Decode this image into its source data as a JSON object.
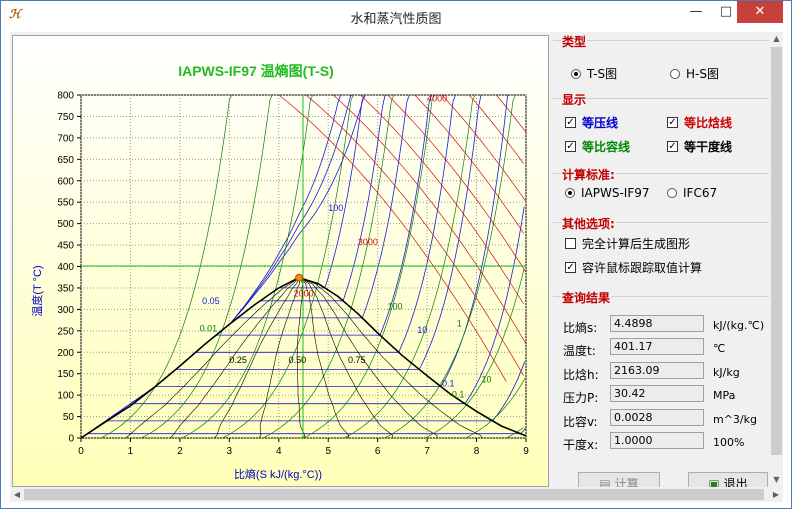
{
  "window": {
    "title": "水和蒸汽性质图",
    "icon_text": "ℋ",
    "minimize": "—",
    "maximize": "□",
    "close": "✕"
  },
  "chart_data": {
    "type": "line",
    "title": "IAPWS-IF97 温熵图(T-S)",
    "xlabel": "比熵(S  kJ/(kg.°C))",
    "ylabel": "温度(T  °C)",
    "xlim": [
      0,
      9
    ],
    "ylim": [
      0,
      800
    ],
    "x_ticks": [
      "0",
      "1",
      "2",
      "3",
      "4",
      "5",
      "6",
      "7",
      "8",
      "9"
    ],
    "y_ticks": [
      "0",
      "50",
      "100",
      "150",
      "200",
      "250",
      "300",
      "350",
      "400",
      "450",
      "500",
      "550",
      "600",
      "650",
      "700",
      "750",
      "800"
    ],
    "grid": true,
    "cursor": {
      "s": 4.4898,
      "t": 401.17
    },
    "critical_point": {
      "s": 4.41,
      "t": 373.9
    },
    "saturation_dome": {
      "x": [
        0,
        0.5,
        1.0,
        1.5,
        2.0,
        2.5,
        3.0,
        3.5,
        4.0,
        4.41,
        4.8,
        5.2,
        5.6,
        6.0,
        6.5,
        7.0,
        7.5,
        8.0,
        8.5,
        9.0
      ],
      "y": [
        0,
        38,
        75,
        120,
        168,
        218,
        265,
        310,
        350,
        374,
        360,
        330,
        290,
        245,
        192,
        145,
        100,
        62,
        28,
        5
      ]
    },
    "isobar_labels": [
      "100",
      "0.05",
      "10",
      "0.1"
    ],
    "enthalpy_labels": [
      "4000",
      "3000",
      "2000"
    ],
    "quality_labels": [
      "0.25",
      "0.50",
      "0.75"
    ],
    "volume_labels": [
      "0.01",
      "0.1",
      "1",
      "10",
      "100"
    ]
  },
  "panel": {
    "type_group": {
      "title": "类型",
      "options": [
        "T-S图",
        "H-S图"
      ],
      "selected": "T-S图"
    },
    "display_group": {
      "title": "显示",
      "items": [
        {
          "label": "等压线",
          "checked": true,
          "color": "#0000cc"
        },
        {
          "label": "等比焓线",
          "checked": true,
          "color": "#cc0000"
        },
        {
          "label": "等比容线",
          "checked": true,
          "color": "#008800"
        },
        {
          "label": "等干度线",
          "checked": true,
          "color": "#000000"
        }
      ]
    },
    "standard_group": {
      "title": "计算标准:",
      "options": [
        "IAPWS-IF97",
        "IFC67"
      ],
      "selected": "IAPWS-IF97"
    },
    "other_group": {
      "title": "其他选项:",
      "items": [
        {
          "label": "完全计算后生成图形",
          "checked": false
        },
        {
          "label": "容许鼠标跟踪取值计算",
          "checked": true
        }
      ]
    },
    "results_group": {
      "title": "查询结果",
      "rows": [
        {
          "label": "比熵s:",
          "value": "4.4898",
          "unit": "kJ/(kg.℃)"
        },
        {
          "label": "温度t:",
          "value": "401.17",
          "unit": "℃"
        },
        {
          "label": "比焓h:",
          "value": "2163.09",
          "unit": "kJ/kg"
        },
        {
          "label": "压力P:",
          "value": "30.42",
          "unit": "MPa"
        },
        {
          "label": "比容v:",
          "value": "0.0028",
          "unit": "m^3/kg"
        },
        {
          "label": "干度x:",
          "value": "1.0000",
          "unit": "100%"
        }
      ]
    },
    "buttons": {
      "calc": "计算",
      "exit": "退出"
    }
  }
}
